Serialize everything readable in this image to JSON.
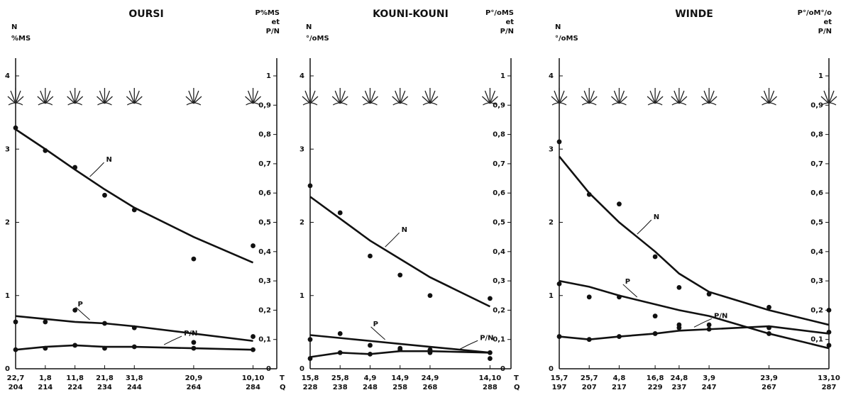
{
  "chart_data": [
    {
      "type": "line",
      "title": "OURSI",
      "ylabel": [
        "N",
        "%MS"
      ],
      "y2label": [
        "P%MS",
        "et",
        "P/N"
      ],
      "x": [
        204,
        214,
        224,
        234,
        244,
        264,
        284
      ],
      "x_T": [
        "22,7",
        "1,8",
        "11,8",
        "21,8",
        "31,8",
        "20,9",
        "10,10"
      ],
      "x_rows": [
        "T",
        "Q"
      ],
      "xlim": [
        204,
        292
      ],
      "xticks": [
        204,
        214,
        224,
        234,
        244,
        264,
        284
      ],
      "ylim": [
        0,
        4
      ],
      "yticks": [
        0,
        1,
        2,
        3,
        4
      ],
      "y2lim": [
        0,
        1
      ],
      "y2ticks": [
        0,
        {
          "value": 0.1,
          "label": "0,1"
        },
        {
          "value": 0.2,
          "label": "0,2"
        },
        {
          "value": 0.3,
          "label": "0,3"
        },
        {
          "value": 0.4,
          "label": "0,4"
        },
        {
          "value": 0.5,
          "label": "0,5"
        },
        {
          "value": 0.6,
          "label": "0,6"
        },
        {
          "value": 0.7,
          "label": "0,7"
        },
        {
          "value": 0.8,
          "label": "0,8"
        },
        {
          "value": 0.9,
          "label": "0,9"
        },
        1
      ],
      "series": [
        {
          "name": "N",
          "color": "#111111",
          "values": [
            3.29,
            2.98,
            2.75,
            2.37,
            2.17,
            1.5,
            1.68
          ],
          "fit": [
            3.27,
            3.0,
            2.72,
            2.45,
            2.2,
            1.8,
            1.45
          ]
        },
        {
          "name": "P",
          "color": "#111111",
          "axis": "y2",
          "values": [
            0.16,
            0.16,
            0.2,
            0.155,
            0.14,
            0.09,
            0.11
          ],
          "fit": [
            0.18,
            0.17,
            0.16,
            0.155,
            0.145,
            0.12,
            0.095
          ]
        },
        {
          "name": "P/N",
          "color": "#111111",
          "axis": "y2",
          "values": [
            0.065,
            0.07,
            0.08,
            0.07,
            0.075,
            0.07,
            0.065
          ],
          "fit": [
            0.065,
            0.075,
            0.08,
            0.075,
            0.075,
            0.07,
            0.065
          ]
        }
      ]
    },
    {
      "type": "line",
      "title": "KOUNI-KOUNI",
      "ylabel": [
        "N",
        "°/oMS"
      ],
      "y2label": [
        "P°/oMS",
        "et",
        "P/N"
      ],
      "x": [
        228,
        238,
        248,
        258,
        268,
        288
      ],
      "x_T": [
        "15,8",
        "25,8",
        "4,9",
        "14,9",
        "24,9",
        "14,10"
      ],
      "x_rows": [
        "T",
        "Q"
      ],
      "xlim": [
        228,
        295
      ],
      "xticks": [
        228,
        238,
        248,
        258,
        268,
        288
      ],
      "ylim": [
        0,
        4
      ],
      "yticks": [
        0,
        1,
        2,
        3,
        4
      ],
      "y2lim": [
        0,
        1
      ],
      "y2ticks": [
        0,
        {
          "value": 0.1,
          "label": "0,1"
        },
        {
          "value": 0.2,
          "label": "0,2"
        },
        {
          "value": 0.3,
          "label": "0,3"
        },
        {
          "value": 0.4,
          "label": "0,4"
        },
        {
          "value": 0.5,
          "label": "0,5"
        },
        {
          "value": 0.6,
          "label": "0,6"
        },
        {
          "value": 0.7,
          "label": "0,7"
        },
        {
          "value": 0.8,
          "label": "0,8"
        },
        {
          "value": 0.9,
          "label": "0,9"
        },
        1
      ],
      "series": [
        {
          "name": "N",
          "color": "#111111",
          "values": [
            2.5,
            2.13,
            1.54,
            1.28,
            1.0,
            0.96
          ],
          "fit": [
            2.35,
            2.05,
            1.75,
            1.5,
            1.25,
            0.85
          ]
        },
        {
          "name": "P",
          "color": "#111111",
          "axis": "y2",
          "values": [
            0.1,
            0.12,
            0.08,
            0.07,
            0.055,
            0.035
          ],
          "fit": [
            0.115,
            0.105,
            0.095,
            0.085,
            0.075,
            0.055
          ]
        },
        {
          "name": "P/N",
          "color": "#111111",
          "axis": "y2",
          "values": [
            0.035,
            0.055,
            0.05,
            0.065,
            0.065,
            0.055
          ],
          "fit": [
            0.04,
            0.055,
            0.05,
            0.06,
            0.06,
            0.055
          ]
        }
      ]
    },
    {
      "type": "line",
      "title": "WINDE",
      "ylabel": [
        "N",
        "°/oMS"
      ],
      "y2label": [
        "P°/oM°/o",
        "et",
        "P/N"
      ],
      "x": [
        197,
        207,
        217,
        229,
        237,
        247,
        267,
        287
      ],
      "x_T": [
        "15,7",
        "25,7",
        "4,8",
        "16,8",
        "24,8",
        "3,9",
        "23,9",
        "13,10"
      ],
      "xlim": [
        197,
        287
      ],
      "xticks": [
        197,
        207,
        217,
        229,
        237,
        247,
        267,
        287
      ],
      "ylim": [
        0,
        4
      ],
      "yticks": [
        0,
        1,
        2,
        3,
        4
      ],
      "y2lim": [
        0,
        1
      ],
      "y2ticks": [
        {
          "value": 0.1,
          "label": "0,1"
        },
        {
          "value": 0.2,
          "label": "0,2"
        },
        {
          "value": 0.3,
          "label": "0,3"
        },
        {
          "value": 0.4,
          "label": "0,4"
        },
        {
          "value": 0.5,
          "label": "0,5"
        },
        {
          "value": 0.6,
          "label": "0,6"
        },
        {
          "value": 0.7,
          "label": "0,7"
        },
        {
          "value": 0.8,
          "label": "0,8"
        },
        {
          "value": 0.9,
          "label": "0,9"
        },
        1
      ],
      "series": [
        {
          "name": "N",
          "color": "#111111",
          "values": [
            3.1,
            2.38,
            2.25,
            1.53,
            1.11,
            1.02,
            0.84,
            0.8
          ],
          "fit": [
            2.9,
            2.4,
            2.0,
            1.6,
            1.3,
            1.05,
            0.8,
            0.6
          ]
        },
        {
          "name": "P",
          "color": "#111111",
          "axis": "y2",
          "values": [
            0.29,
            0.245,
            0.245,
            0.18,
            0.15,
            0.15,
            0.12,
            0.08
          ],
          "fit": [
            0.3,
            0.28,
            0.25,
            0.22,
            0.2,
            0.18,
            0.12,
            0.07
          ]
        },
        {
          "name": "P/N",
          "color": "#111111",
          "axis": "y2",
          "values": [
            0.11,
            0.1,
            0.11,
            0.12,
            0.14,
            0.135,
            0.14,
            0.125
          ],
          "fit": [
            0.11,
            0.1,
            0.11,
            0.12,
            0.13,
            0.135,
            0.145,
            0.12
          ]
        }
      ]
    }
  ]
}
